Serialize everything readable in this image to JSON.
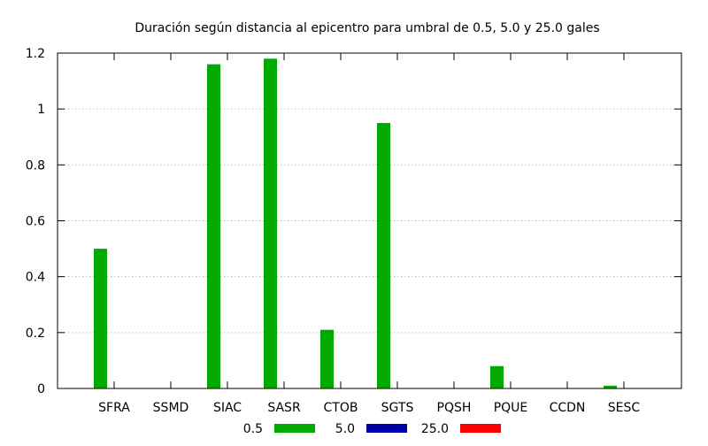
{
  "chart_data": {
    "type": "bar",
    "title": "Duración según distancia al epicentro para umbral de 0.5, 5.0 y 25.0 gales",
    "xlabel": "",
    "ylabel": "",
    "categories": [
      "SFRA",
      "SSMD",
      "SIAC",
      "SASR",
      "CTOB",
      "SGTS",
      "PQSH",
      "PQUE",
      "CCDN",
      "SESC"
    ],
    "series": [
      {
        "name": "0.5",
        "color": "#00aa00",
        "values": [
          0.5,
          0,
          1.16,
          1.18,
          0.21,
          0.95,
          0,
          0.08,
          0,
          0.01
        ]
      },
      {
        "name": "5.0",
        "color": "#0000aa",
        "values": [
          0,
          0,
          0,
          0,
          0,
          0,
          0,
          0,
          0,
          0
        ]
      },
      {
        "name": "25.0",
        "color": "#ff0000",
        "values": [
          0,
          0,
          0,
          0,
          0,
          0,
          0,
          0,
          0,
          0
        ]
      }
    ],
    "ylim": [
      0,
      1.2
    ],
    "yticks": [
      "0",
      "0.2",
      "0.4",
      "0.6",
      "0.8",
      "1",
      "1.2"
    ],
    "grid": true,
    "legend_position": "bottom"
  }
}
